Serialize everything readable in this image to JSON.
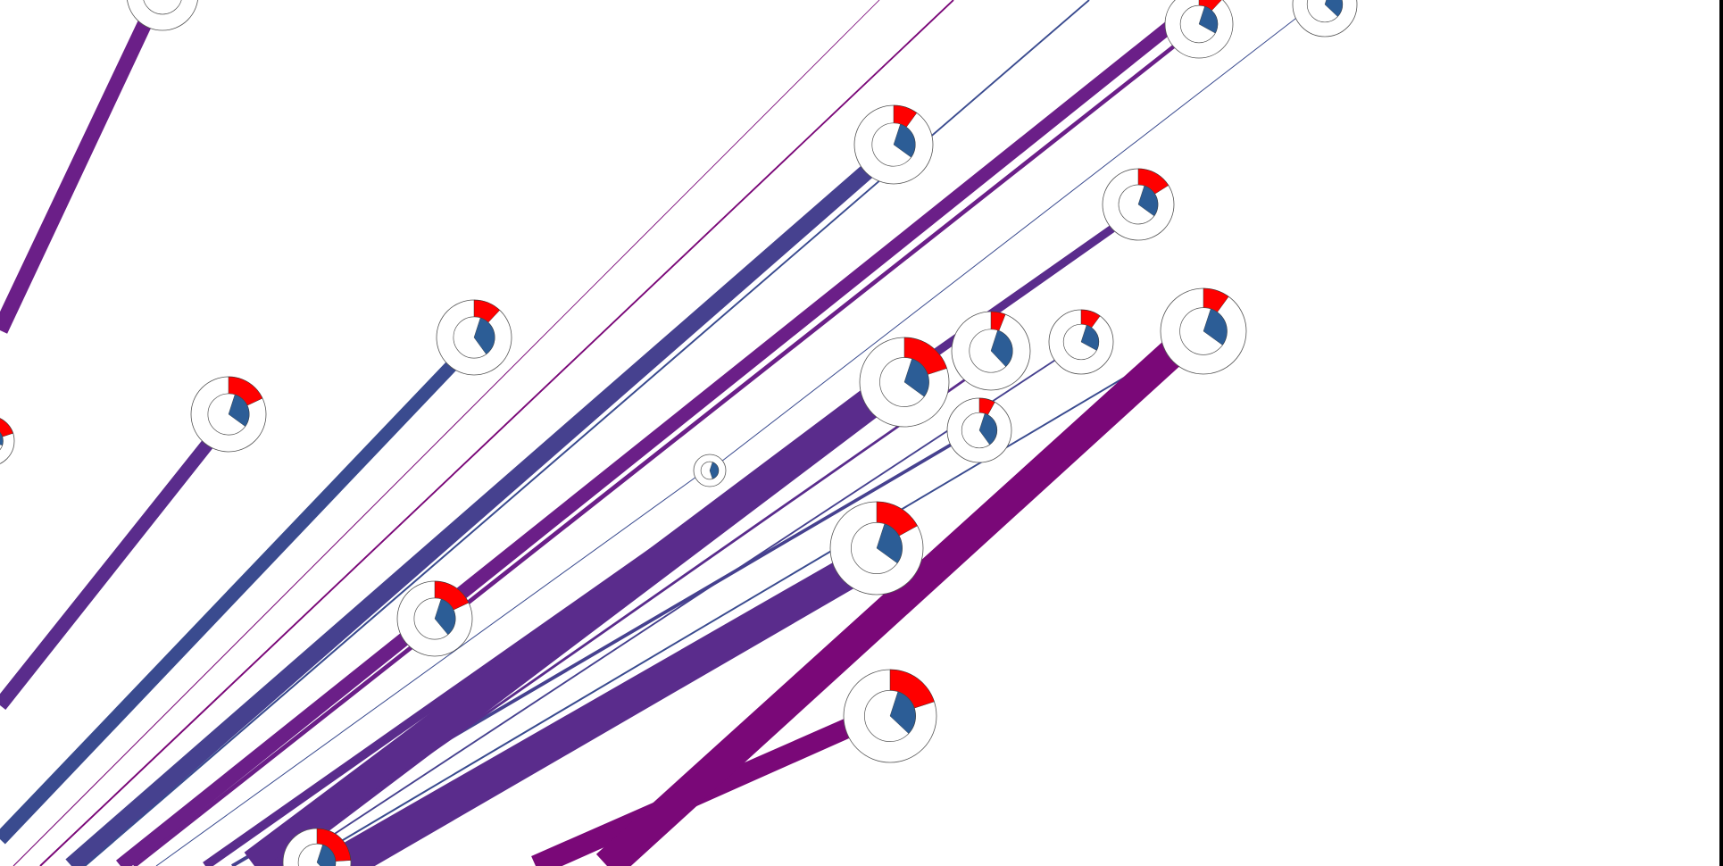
{
  "colors": {
    "background": "#ffffff",
    "flow_blue": "#3a4b8f",
    "flow_indigo": "#46418f",
    "flow_violet": "#5a2c8c",
    "flow_purple": "#6b1f88",
    "flow_magenta": "#7a0878",
    "ring_fill": "#ffffff",
    "ring_stroke": "#555555",
    "wedge_red": "#ff0000",
    "wedge_blue": "#2c5d96",
    "edge_bar": "#000000"
  },
  "flows": [
    {
      "id": "flow-1",
      "color": "flow_purple",
      "to_node": "node-a",
      "weight": 18
    },
    {
      "id": "flow-2",
      "color": "flow_violet",
      "to_node": "node-c",
      "weight": 16
    },
    {
      "id": "flow-3",
      "color": "flow_blue",
      "to_node": "node-d",
      "weight": 16
    },
    {
      "id": "flow-4",
      "color": "flow_magenta",
      "to_node": "offscreen-1",
      "weight": 1
    },
    {
      "id": "flow-5",
      "color": "flow_magenta",
      "to_node": "offscreen-2",
      "weight": 2
    },
    {
      "id": "flow-6",
      "color": "flow_indigo",
      "to_node": "node-e",
      "weight": 20
    },
    {
      "id": "flow-7",
      "color": "flow_blue",
      "to_node": "offscreen-3",
      "weight": 2
    },
    {
      "id": "flow-8",
      "color": "flow_purple",
      "to_node": "node-g",
      "weight": 16
    },
    {
      "id": "flow-9",
      "color": "flow_purple",
      "to_node": "node-f",
      "weight": 5
    },
    {
      "id": "flow-10",
      "color": "flow_blue",
      "to_node": "node-h",
      "weight": 1
    },
    {
      "id": "flow-11",
      "color": "flow_violet",
      "to_node": "node-i",
      "weight": 10
    },
    {
      "id": "flow-12",
      "color": "flow_indigo",
      "to_node": "node-k",
      "weight": 4
    },
    {
      "id": "flow-13",
      "color": "flow_violet",
      "to_node": "node-m",
      "weight": 38
    },
    {
      "id": "flow-14",
      "color": "flow_violet",
      "to_node": "node-l",
      "weight": 3
    },
    {
      "id": "flow-15",
      "color": "flow_indigo",
      "to_node": "node-n",
      "weight": 2
    },
    {
      "id": "flow-16",
      "color": "flow_blue",
      "to_node": "node-o",
      "weight": 2
    },
    {
      "id": "flow-17",
      "color": "flow_violet",
      "to_node": "node-p",
      "weight": 40
    },
    {
      "id": "flow-18",
      "color": "flow_magenta",
      "to_node": "node-q",
      "weight": 24
    },
    {
      "id": "flow-19",
      "color": "flow_magenta",
      "to_node": "node-r",
      "weight": 36
    },
    {
      "id": "flow-20",
      "color": "flow_blue",
      "to_node": "node-s",
      "weight": 1
    }
  ],
  "nodes": [
    {
      "id": "node-a",
      "red": 0.05,
      "blue": 0.1
    },
    {
      "id": "node-b",
      "red": 0.2,
      "blue": 0.25
    },
    {
      "id": "node-c",
      "red": 0.18,
      "blue": 0.3
    },
    {
      "id": "node-d",
      "red": 0.12,
      "blue": 0.35
    },
    {
      "id": "node-e",
      "red": 0.1,
      "blue": 0.3
    },
    {
      "id": "node-f",
      "red": 0.12,
      "blue": 0.28
    },
    {
      "id": "node-g",
      "red": 0.14,
      "blue": 0.32
    },
    {
      "id": "node-h",
      "red": 0.0,
      "blue": 0.4
    },
    {
      "id": "node-i",
      "red": 0.16,
      "blue": 0.3
    },
    {
      "id": "node-j",
      "red": 0.18,
      "blue": 0.34
    },
    {
      "id": "node-k",
      "red": 0.08,
      "blue": 0.35
    },
    {
      "id": "node-l",
      "red": 0.06,
      "blue": 0.33
    },
    {
      "id": "node-m",
      "red": 0.2,
      "blue": 0.3
    },
    {
      "id": "node-n",
      "red": 0.1,
      "blue": 0.28
    },
    {
      "id": "node-o",
      "red": 0.1,
      "blue": 0.3
    },
    {
      "id": "node-p",
      "red": 0.17,
      "blue": 0.3
    },
    {
      "id": "node-q",
      "red": 0.2,
      "blue": 0.32
    },
    {
      "id": "node-r",
      "red": 0.24,
      "blue": 0.33
    },
    {
      "id": "node-s",
      "red": 0.05,
      "blue": 0.1
    }
  ]
}
